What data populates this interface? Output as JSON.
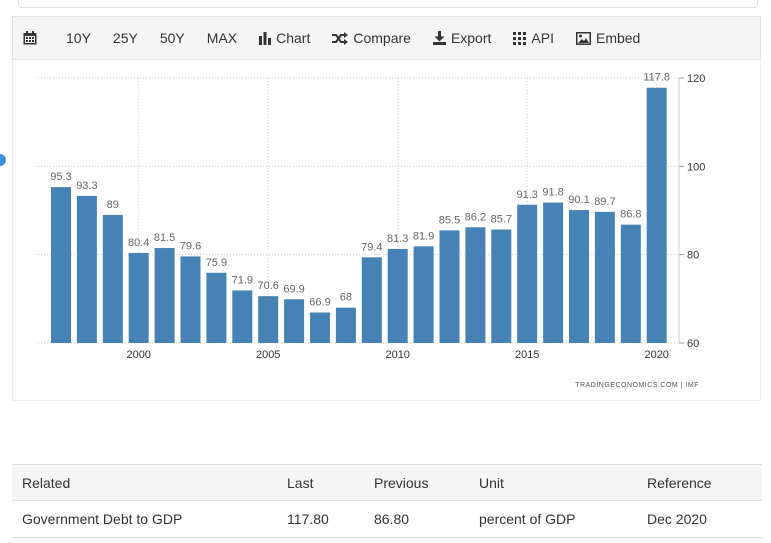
{
  "toolbar": {
    "ranges": [
      "10Y",
      "25Y",
      "50Y",
      "MAX"
    ],
    "chart_label": "Chart",
    "compare_label": "Compare",
    "export_label": "Export",
    "api_label": "API",
    "embed_label": "Embed"
  },
  "chart_data": {
    "type": "bar",
    "x": [
      1997,
      1998,
      1999,
      2000,
      2001,
      2002,
      2003,
      2004,
      2005,
      2006,
      2007,
      2008,
      2009,
      2010,
      2011,
      2012,
      2013,
      2014,
      2015,
      2016,
      2017,
      2018,
      2019,
      2020
    ],
    "values": [
      95.3,
      93.3,
      89,
      80.4,
      81.5,
      79.6,
      75.9,
      71.9,
      70.6,
      69.9,
      66.9,
      68,
      79.4,
      81.3,
      81.9,
      85.5,
      86.2,
      85.7,
      91.3,
      91.8,
      90.1,
      89.7,
      86.8,
      117.8
    ],
    "value_labels": [
      "95.3",
      "93.3",
      "89",
      "80.4",
      "81.5",
      "79.6",
      "75.9",
      "71.9",
      "70.6",
      "69.9",
      "66.9",
      "68",
      "79.4",
      "81.3",
      "81.9",
      "85.5",
      "86.2",
      "85.7",
      "91.3",
      "91.8",
      "90.1",
      "89.7",
      "86.8",
      "117.8"
    ],
    "x_ticks": [
      "2000",
      "2005",
      "2010",
      "2015",
      "2020"
    ],
    "y_ticks": [
      "60",
      "80",
      "100",
      "120"
    ],
    "ylim": [
      60,
      120
    ],
    "grid": true,
    "bar_color": "#4682b4",
    "source": "TRADINGECONOMICS.COM | IMF"
  },
  "related": {
    "headers": [
      "Related",
      "Last",
      "Previous",
      "Unit",
      "Reference"
    ],
    "rows": [
      [
        "Government Debt to GDP",
        "117.80",
        "86.80",
        "percent of GDP",
        "Dec 2020"
      ]
    ]
  }
}
